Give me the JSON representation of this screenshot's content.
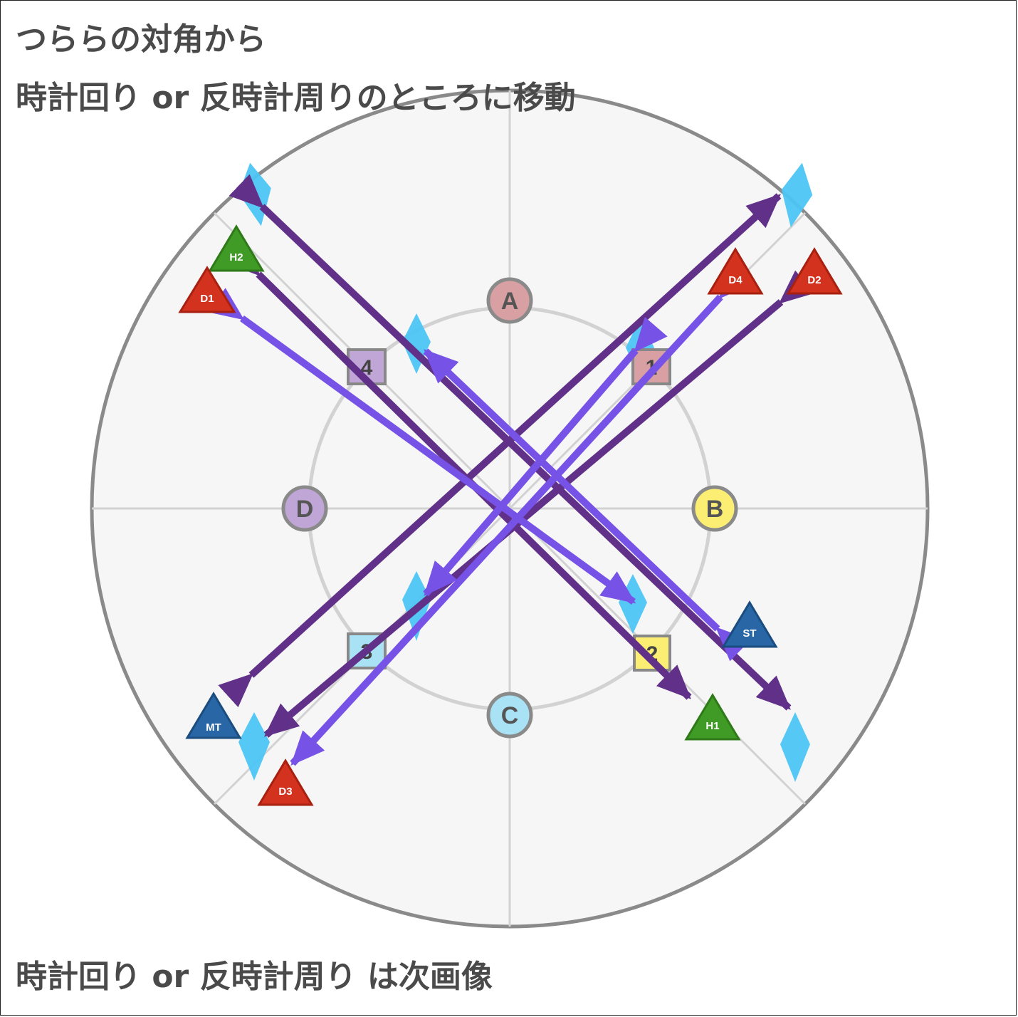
{
  "caption": {
    "line1": "つららの対角から",
    "line2": "時計回り or 反時計周りのところに移動",
    "line3": "時計回り or 反時計周り は次画像"
  },
  "waymarks": [
    {
      "label": "A",
      "color": "#d8a0a2"
    },
    {
      "label": "B",
      "color": "#fbee72"
    },
    {
      "label": "C",
      "color": "#a9e2f5"
    },
    {
      "label": "D",
      "color": "#c0a6d6"
    },
    {
      "label": "1",
      "color": "#d8a0a2"
    },
    {
      "label": "2",
      "color": "#fbee72"
    },
    {
      "label": "3",
      "color": "#a9e2f5"
    },
    {
      "label": "4",
      "color": "#c0a6d6"
    }
  ],
  "players": [
    {
      "label": "H2",
      "color": "#3f9a26"
    },
    {
      "label": "D1",
      "color": "#d3321e"
    },
    {
      "label": "D4",
      "color": "#d3321e"
    },
    {
      "label": "D2",
      "color": "#d3321e"
    },
    {
      "label": "ST",
      "color": "#2866a6"
    },
    {
      "label": "MT",
      "color": "#2866a6"
    },
    {
      "label": "H1",
      "color": "#3f9a26"
    },
    {
      "label": "D3",
      "color": "#d3321e"
    }
  ],
  "colors": {
    "arena_fill": "#f6f6f6",
    "arena_border": "#8a8a8a",
    "grid": "#d2d2d2",
    "icicle": "#4dc5f4",
    "arrow_dark": "#61318a",
    "arrow_light": "#7652e6"
  }
}
